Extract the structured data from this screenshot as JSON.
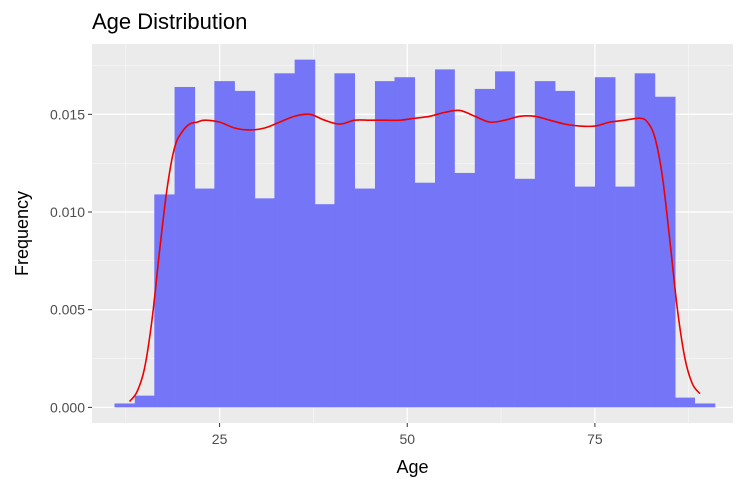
{
  "chart_data": {
    "type": "bar",
    "title": "Age Distribution",
    "xlabel": "Age",
    "ylabel": "Frequency",
    "xlim": [
      8.0,
      93.4
    ],
    "ylim": [
      -0.0008,
      0.0186
    ],
    "x_ticks": [
      25,
      50,
      75
    ],
    "x_tick_labels": [
      "25",
      "50",
      "75"
    ],
    "y_ticks": [
      0.0,
      0.005,
      0.01,
      0.015
    ],
    "y_tick_labels": [
      "0.000",
      "0.005",
      "0.010",
      "0.015"
    ],
    "grid": true,
    "legend": "none",
    "histogram": {
      "bins": [
        {
          "x0": 11.0,
          "x1": 13.7,
          "value": 0.0002
        },
        {
          "x0": 13.7,
          "x1": 16.3,
          "value": 0.0006
        },
        {
          "x0": 16.3,
          "x1": 19.0,
          "value": 0.0109
        },
        {
          "x0": 19.0,
          "x1": 21.7,
          "value": 0.0164
        },
        {
          "x0": 21.7,
          "x1": 24.3,
          "value": 0.0112
        },
        {
          "x0": 24.3,
          "x1": 27.0,
          "value": 0.0167
        },
        {
          "x0": 27.0,
          "x1": 29.7,
          "value": 0.0162
        },
        {
          "x0": 29.7,
          "x1": 32.3,
          "value": 0.0107
        },
        {
          "x0": 32.3,
          "x1": 35.0,
          "value": 0.0171
        },
        {
          "x0": 35.0,
          "x1": 37.7,
          "value": 0.0178
        },
        {
          "x0": 37.7,
          "x1": 40.3,
          "value": 0.0104
        },
        {
          "x0": 40.3,
          "x1": 43.0,
          "value": 0.0171
        },
        {
          "x0": 43.0,
          "x1": 45.7,
          "value": 0.0112
        },
        {
          "x0": 45.7,
          "x1": 48.3,
          "value": 0.0167
        },
        {
          "x0": 48.3,
          "x1": 51.0,
          "value": 0.0169
        },
        {
          "x0": 51.0,
          "x1": 53.7,
          "value": 0.0115
        },
        {
          "x0": 53.7,
          "x1": 56.3,
          "value": 0.0173
        },
        {
          "x0": 56.3,
          "x1": 59.0,
          "value": 0.012
        },
        {
          "x0": 59.0,
          "x1": 61.7,
          "value": 0.0163
        },
        {
          "x0": 61.7,
          "x1": 64.3,
          "value": 0.0172
        },
        {
          "x0": 64.3,
          "x1": 67.0,
          "value": 0.0117
        },
        {
          "x0": 67.0,
          "x1": 69.7,
          "value": 0.0167
        },
        {
          "x0": 69.7,
          "x1": 72.3,
          "value": 0.0162
        },
        {
          "x0": 72.3,
          "x1": 75.0,
          "value": 0.0113
        },
        {
          "x0": 75.0,
          "x1": 77.7,
          "value": 0.0169
        },
        {
          "x0": 77.7,
          "x1": 80.3,
          "value": 0.0113
        },
        {
          "x0": 80.3,
          "x1": 83.0,
          "value": 0.0171
        },
        {
          "x0": 83.0,
          "x1": 85.7,
          "value": 0.0159
        },
        {
          "x0": 85.7,
          "x1": 88.3,
          "value": 0.0005
        },
        {
          "x0": 88.3,
          "x1": 91.0,
          "value": 0.0002
        }
      ]
    },
    "density": {
      "x": [
        13.0,
        14.0,
        15.0,
        16.0,
        17.0,
        18.0,
        19.0,
        20.0,
        21.0,
        22.0,
        23.0,
        25.0,
        27.0,
        29.0,
        31.0,
        33.0,
        35.0,
        37.0,
        39.0,
        41.0,
        43.0,
        45.0,
        47.0,
        49.0,
        51.0,
        53.0,
        55.0,
        57.0,
        59.0,
        61.0,
        63.0,
        65.0,
        67.0,
        69.0,
        71.0,
        73.0,
        75.0,
        77.0,
        79.0,
        81.0,
        82.0,
        83.0,
        84.0,
        85.0,
        86.0,
        87.0,
        88.0,
        89.0
      ],
      "y": [
        0.0003,
        0.0008,
        0.002,
        0.0045,
        0.008,
        0.0112,
        0.0133,
        0.0141,
        0.0145,
        0.0146,
        0.0147,
        0.0146,
        0.0143,
        0.0142,
        0.0143,
        0.0146,
        0.0149,
        0.015,
        0.0147,
        0.0145,
        0.0147,
        0.0147,
        0.0147,
        0.0147,
        0.0148,
        0.0149,
        0.0151,
        0.0152,
        0.0149,
        0.0146,
        0.0147,
        0.0149,
        0.0149,
        0.0147,
        0.0145,
        0.0144,
        0.0144,
        0.0146,
        0.0147,
        0.0148,
        0.0146,
        0.0138,
        0.0118,
        0.0085,
        0.005,
        0.0025,
        0.0012,
        0.0007
      ]
    },
    "colors": {
      "panel_background": "#ebebeb",
      "grid_major": "#ffffff",
      "bar_fill": "#7575f7",
      "density_line": "#ee0000",
      "tick_label": "#4d4d4d",
      "axis_text": "#000000"
    }
  }
}
